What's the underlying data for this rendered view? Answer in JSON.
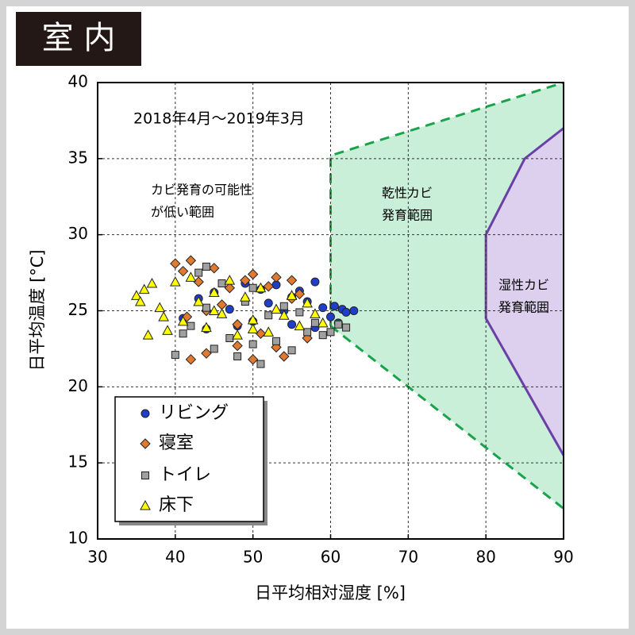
{
  "chart_data": {
    "type": "scatter",
    "panel_title": "室 内",
    "annotation": "2018年4月～2019年3月",
    "note_lines": [
      "カビ発育の可能性",
      "が低い範囲"
    ],
    "x_label": "日平均相対湿度 [%]",
    "y_label": "日平均温度 [°C]",
    "xlim": [
      30,
      90
    ],
    "ylim": [
      10,
      40
    ],
    "xticks": [
      30,
      40,
      50,
      60,
      70,
      80,
      90
    ],
    "yticks": [
      10,
      15,
      20,
      25,
      30,
      35,
      40
    ],
    "grid": true,
    "regions": [
      {
        "lines": [
          "乾性カビ",
          "発育範囲"
        ],
        "color": "#c9efd9",
        "edge": "#1aa34a",
        "dashed": true,
        "x": [
          60,
          90,
          90,
          60
        ],
        "y": [
          35.2,
          40,
          12,
          24
        ]
      },
      {
        "lines": [
          "湿性カビ",
          "発育範囲"
        ],
        "color": "#ddd0ee",
        "edge": "#6a3fa8",
        "dashed": false,
        "x": [
          90,
          85,
          80,
          80,
          90
        ],
        "y": [
          37,
          35,
          30,
          24.5,
          15.5
        ]
      }
    ],
    "series": [
      {
        "name": "リビング",
        "color": "#1f3fc8",
        "marker": "circle",
        "x": [
          41,
          43,
          45,
          47,
          49,
          50,
          52,
          53,
          54,
          55,
          56,
          57,
          58,
          59,
          60,
          60.5,
          61,
          61.5,
          62,
          63,
          44,
          48,
          51,
          55,
          58
        ],
        "values": [
          24.5,
          25.8,
          26.2,
          25.1,
          26.8,
          24.3,
          25.5,
          26.7,
          25.0,
          24.1,
          26.3,
          25.6,
          26.9,
          25.2,
          24.6,
          25.3,
          24.2,
          25.1,
          24.9,
          25.0,
          23.8,
          24.0,
          26.4,
          25.9,
          23.9
        ]
      },
      {
        "name": "寝室",
        "color": "#e07a30",
        "marker": "diamond",
        "x": [
          40,
          41,
          42,
          43,
          44,
          45,
          46,
          47,
          48,
          49,
          50,
          51,
          52,
          53,
          54,
          55,
          56,
          57,
          42,
          44,
          48,
          50,
          53,
          55,
          41.5
        ],
        "values": [
          28.1,
          27.6,
          28.3,
          26.9,
          22.2,
          27.8,
          25.4,
          26.5,
          22.7,
          27.0,
          21.8,
          23.5,
          26.6,
          27.2,
          22.0,
          25.8,
          26.1,
          23.2,
          21.8,
          25.0,
          24.1,
          27.4,
          22.6,
          27.0,
          24.6
        ]
      },
      {
        "name": "トイレ",
        "color": "#a0a0a0",
        "marker": "square",
        "x": [
          40,
          41,
          42,
          43,
          44,
          45,
          46,
          47,
          48,
          49,
          50,
          51,
          52,
          53,
          54,
          55,
          56,
          57,
          58,
          59,
          60,
          61,
          62,
          44,
          50
        ],
        "values": [
          22.1,
          23.5,
          24.0,
          27.5,
          27.9,
          22.5,
          26.8,
          23.2,
          22.0,
          25.6,
          22.8,
          21.5,
          24.7,
          23.0,
          25.3,
          22.4,
          24.9,
          23.6,
          24.2,
          23.4,
          23.6,
          24.1,
          23.9,
          25.2,
          26.5
        ]
      },
      {
        "name": "床下",
        "color": "#ffff00",
        "marker": "triangle",
        "x": [
          35,
          35.5,
          36,
          37,
          38,
          39,
          40,
          41,
          42,
          43,
          44,
          45,
          46,
          47,
          48,
          49,
          50,
          51,
          52,
          53,
          54,
          55,
          56,
          57,
          58,
          59,
          36.5,
          38.5,
          45,
          50
        ],
        "values": [
          26,
          25.6,
          26.4,
          26.8,
          25.2,
          23.7,
          26.9,
          24.3,
          27.2,
          25.6,
          23.9,
          26.2,
          24.8,
          27.0,
          23.4,
          25.9,
          24.4,
          26.5,
          23.6,
          25.1,
          24.7,
          26.0,
          24.0,
          25.5,
          24.8,
          24.2,
          23.4,
          24.6,
          25.0,
          23.8
        ]
      }
    ]
  }
}
